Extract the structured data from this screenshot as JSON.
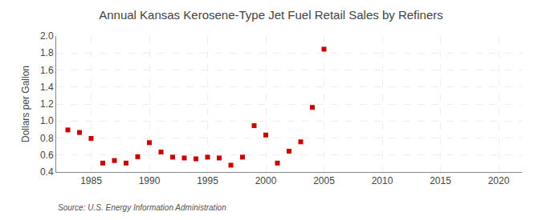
{
  "chart_data": {
    "type": "scatter",
    "title": "Annual Kansas Kerosene-Type Jet Fuel Retail Sales by Refiners",
    "ylabel": "Dollars per Gallon",
    "annotations": [
      "Source: U.S. Energy Information Administration"
    ],
    "x": [
      1983,
      1984,
      1985,
      1986,
      1987,
      1988,
      1989,
      1990,
      1991,
      1992,
      1993,
      1994,
      1995,
      1996,
      1997,
      1998,
      1999,
      2000,
      2001,
      2002,
      2003,
      2004,
      2005
    ],
    "values": [
      0.895,
      0.865,
      0.795,
      0.505,
      0.535,
      0.505,
      0.58,
      0.745,
      0.635,
      0.575,
      0.565,
      0.555,
      0.575,
      0.565,
      0.48,
      0.575,
      0.945,
      0.835,
      0.505,
      0.645,
      0.755,
      1.16,
      1.845
    ],
    "color": "#cc0000",
    "marker": "square",
    "xlim": [
      1982,
      2022
    ],
    "ylim": [
      0.4,
      2.0
    ],
    "xticks": [
      1985,
      1990,
      1995,
      2000,
      2005,
      2010,
      2015,
      2020
    ],
    "yticks": [
      0.4,
      0.6,
      0.8,
      {
        "value": 1,
        "label": "1.0"
      },
      1.2,
      1.4,
      1.6,
      1.8,
      {
        "value": 2,
        "label": "2.0"
      }
    ],
    "grid": true
  }
}
